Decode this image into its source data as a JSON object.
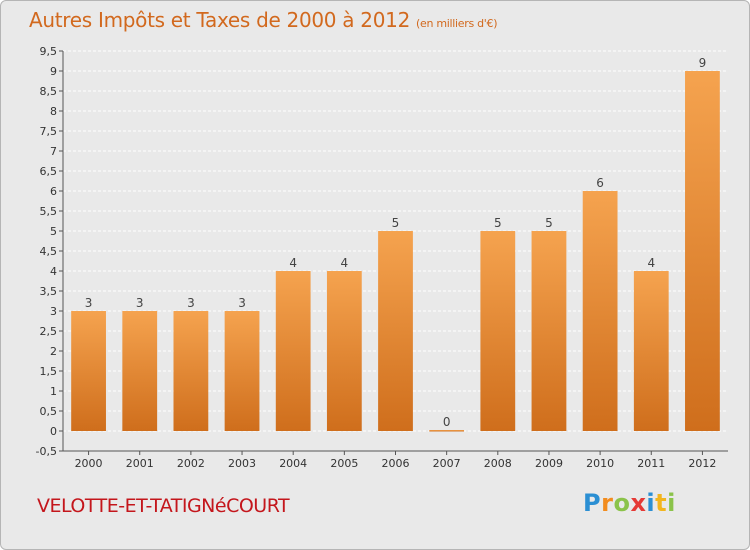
{
  "header": {
    "title": "Autres Impôts et Taxes de 2000 à 2012",
    "unit": "(en milliers d'€)"
  },
  "footer": {
    "commune": "VELOTTE-ET-TATIGNéCOURT",
    "logo_text": "Proxiti"
  },
  "colors": {
    "bar_top": "#f5a34f",
    "bar_bottom": "#cf6e1c",
    "title": "#d2691e",
    "commune": "#c4161c",
    "background": "#e9e9e9"
  },
  "chart_data": {
    "type": "bar",
    "title": "Autres Impôts et Taxes de 2000 à 2012",
    "subtitle": "(en milliers d'€)",
    "categories": [
      "2000",
      "2001",
      "2002",
      "2003",
      "2004",
      "2005",
      "2006",
      "2007",
      "2008",
      "2009",
      "2010",
      "2011",
      "2012"
    ],
    "values": [
      3,
      3,
      3,
      3,
      4,
      4,
      5,
      0,
      5,
      5,
      6,
      4,
      9
    ],
    "data_labels": [
      "3",
      "3",
      "3",
      "3",
      "4",
      "4",
      "5",
      "0",
      "5",
      "5",
      "6",
      "4",
      "9"
    ],
    "ylim": [
      -0.5,
      9.5
    ],
    "yticks": [
      -0.5,
      0,
      0.5,
      1,
      1.5,
      2,
      2.5,
      3,
      3.5,
      4,
      4.5,
      5,
      5.5,
      6,
      6.5,
      7,
      7.5,
      8,
      8.5,
      9,
      9.5
    ],
    "ytick_labels": [
      "-0,5",
      "0",
      "0,5",
      "1",
      "1,5",
      "2",
      "2,5",
      "3",
      "3,5",
      "4",
      "4,5",
      "5",
      "5,5",
      "6",
      "6,5",
      "7",
      "7,5",
      "8",
      "8,5",
      "9",
      "9,5"
    ],
    "grid": true,
    "legend": "none"
  }
}
